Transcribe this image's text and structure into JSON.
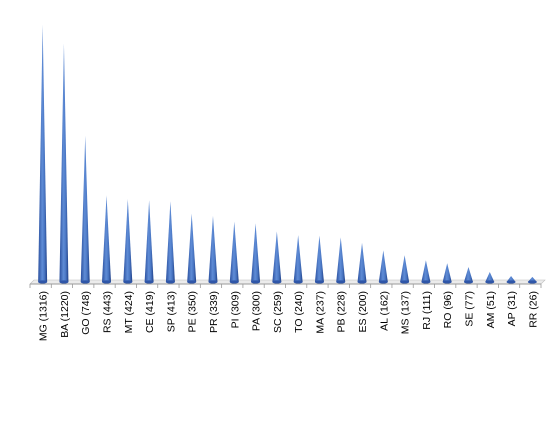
{
  "chart_data": {
    "type": "bar",
    "title": "",
    "xlabel": "",
    "ylabel": "",
    "categories": [
      "MG (1316)",
      "BA (1220)",
      "GO (748)",
      "RS (443)",
      "MT (424)",
      "CE (419)",
      "SP (413)",
      "PE (350)",
      "PR (339)",
      "PI (309)",
      "PA (300)",
      "SC (259)",
      "TO (240)",
      "MA (237)",
      "PB (228)",
      "ES (200)",
      "AL (162)",
      "MS (137)",
      "RJ (111)",
      "RO (96)",
      "SE (77)",
      "AM (51)",
      "AP (31)",
      "RR (26)"
    ],
    "values": [
      1316,
      1220,
      748,
      443,
      424,
      419,
      413,
      350,
      339,
      309,
      300,
      259,
      240,
      237,
      228,
      200,
      162,
      137,
      111,
      96,
      77,
      51,
      31,
      26
    ],
    "bar_shape": "cone",
    "ylim": [
      0,
      1320
    ],
    "grid": false,
    "legend": "none",
    "colors": {
      "bar_light": "#7fa6de",
      "bar_dark": "#2f56a8",
      "axis": "#9a9a9a"
    }
  }
}
